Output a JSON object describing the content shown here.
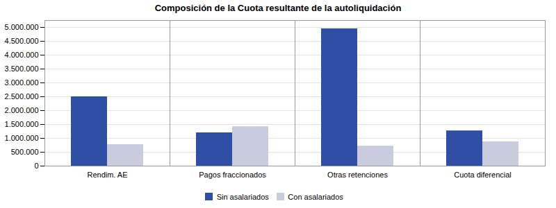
{
  "chart_data": {
    "type": "bar",
    "title": "Composición de la Cuota resultante de la autoliquidación",
    "categories": [
      "Rendim. AE",
      "Pagos fraccionados",
      "Otras retenciones",
      "Cuota diferencial"
    ],
    "series": [
      {
        "name": "Sin asalariados",
        "color": "#2E4FA3",
        "values": [
          2500000,
          1200000,
          4950000,
          1270000
        ]
      },
      {
        "name": "Con asalariados",
        "color": "#C8CCDC",
        "values": [
          775000,
          1420000,
          720000,
          875000
        ]
      }
    ],
    "ylim": [
      0,
      5250000
    ],
    "yticks": [
      0,
      {
        "value": 500000,
        "label": "500.000"
      },
      {
        "value": 1000000,
        "label": "1.000.000"
      },
      {
        "value": 1500000,
        "label": "1.500.000"
      },
      {
        "value": 2000000,
        "label": "2.000.000"
      },
      {
        "value": 2500000,
        "label": "2.500.000"
      },
      {
        "value": 3000000,
        "label": "3.000.000"
      },
      {
        "value": 3500000,
        "label": "3.500.000"
      },
      {
        "value": 4000000,
        "label": "4.000.000"
      },
      {
        "value": 4500000,
        "label": "4.500.000"
      },
      {
        "value": 5000000,
        "label": "5.000.000"
      }
    ],
    "grid": true,
    "legend": "lower center"
  }
}
